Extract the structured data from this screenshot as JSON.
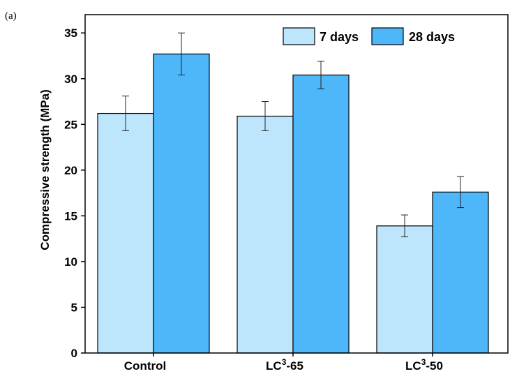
{
  "panel_label": "(a)",
  "chart_data": {
    "type": "bar",
    "title": "",
    "xlabel": "",
    "ylabel": "Compressive strength (MPa)",
    "ylim": [
      0,
      37
    ],
    "yticks": [
      0,
      5,
      10,
      15,
      20,
      25,
      30,
      35
    ],
    "categories": [
      {
        "base": "Control",
        "sup": "",
        "suffix": ""
      },
      {
        "base": "LC",
        "sup": "3",
        "suffix": "-65"
      },
      {
        "base": "LC",
        "sup": "3",
        "suffix": "-50"
      }
    ],
    "series": [
      {
        "name": "7 days",
        "color": "#bde5fb",
        "values": [
          26.2,
          25.9,
          13.9
        ],
        "errors": [
          1.9,
          1.6,
          1.2
        ]
      },
      {
        "name": "28 days",
        "color": "#4db7f9",
        "values": [
          32.7,
          30.4,
          17.6
        ],
        "errors": [
          2.3,
          1.5,
          1.7
        ]
      }
    ],
    "legend_position": "top-right",
    "grid": false
  }
}
